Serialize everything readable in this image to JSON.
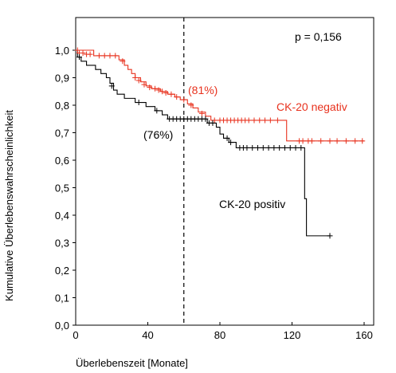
{
  "chart_data": {
    "type": "line",
    "title": "",
    "xlabel": "Überlebenszeit [Monate]",
    "ylabel": "Kumulative Überlebenswahrscheinlichkeit",
    "xlim": [
      0,
      160
    ],
    "ylim": [
      0,
      1.08
    ],
    "x_ticks": [
      {
        "v": 0,
        "t": "0"
      },
      {
        "v": 40,
        "t": "40"
      },
      {
        "v": 80,
        "t": "80"
      },
      {
        "v": 120,
        "t": "120"
      },
      {
        "v": 160,
        "t": "160"
      }
    ],
    "y_ticks": [
      {
        "v": 0.0,
        "t": "0,0"
      },
      {
        "v": 0.1,
        "t": "0,1"
      },
      {
        "v": 0.2,
        "t": "0,2"
      },
      {
        "v": 0.3,
        "t": "0,3"
      },
      {
        "v": 0.4,
        "t": "0,4"
      },
      {
        "v": 0.5,
        "t": "0,5"
      },
      {
        "v": 0.6,
        "t": "0,6"
      },
      {
        "v": 0.7,
        "t": "0,7"
      },
      {
        "v": 0.8,
        "t": "0,8"
      },
      {
        "v": 0.9,
        "t": "0,9"
      },
      {
        "v": 1.0,
        "t": "1,0"
      }
    ],
    "p_value_text": "p = 0,156",
    "reference_line": {
      "x": 60,
      "style": "dashed",
      "color": "#000000"
    },
    "series": [
      {
        "name": "CK-20 negativ",
        "color": "#e8321e",
        "annotation": "(81%)",
        "steps": [
          [
            0,
            1.0
          ],
          [
            10,
            0.98
          ],
          [
            24,
            0.965
          ],
          [
            27,
            0.945
          ],
          [
            29,
            0.93
          ],
          [
            31,
            0.915
          ],
          [
            33,
            0.9
          ],
          [
            36,
            0.885
          ],
          [
            39,
            0.87
          ],
          [
            42,
            0.86
          ],
          [
            47,
            0.85
          ],
          [
            51,
            0.84
          ],
          [
            55,
            0.83
          ],
          [
            58,
            0.82
          ],
          [
            62,
            0.805
          ],
          [
            65,
            0.79
          ],
          [
            68,
            0.775
          ],
          [
            72,
            0.76
          ],
          [
            75,
            0.745
          ],
          [
            117,
            0.67
          ],
          [
            160,
            0.67
          ]
        ],
        "censored": [
          [
            1,
            1.0
          ],
          [
            2,
            0.99
          ],
          [
            4,
            0.99
          ],
          [
            6,
            0.985
          ],
          [
            8,
            0.985
          ],
          [
            13,
            0.98
          ],
          [
            16,
            0.98
          ],
          [
            19,
            0.98
          ],
          [
            22,
            0.98
          ],
          [
            26,
            0.96
          ],
          [
            33,
            0.9
          ],
          [
            35,
            0.89
          ],
          [
            38,
            0.875
          ],
          [
            41,
            0.865
          ],
          [
            44,
            0.86
          ],
          [
            46,
            0.855
          ],
          [
            48,
            0.85
          ],
          [
            50,
            0.845
          ],
          [
            53,
            0.84
          ],
          [
            56,
            0.83
          ],
          [
            60,
            0.82
          ],
          [
            64,
            0.8
          ],
          [
            70,
            0.77
          ],
          [
            77,
            0.745
          ],
          [
            80,
            0.745
          ],
          [
            82,
            0.745
          ],
          [
            84,
            0.745
          ],
          [
            86,
            0.745
          ],
          [
            88,
            0.745
          ],
          [
            90,
            0.745
          ],
          [
            92,
            0.745
          ],
          [
            94,
            0.745
          ],
          [
            96,
            0.745
          ],
          [
            99,
            0.745
          ],
          [
            102,
            0.745
          ],
          [
            105,
            0.745
          ],
          [
            108,
            0.745
          ],
          [
            112,
            0.745
          ],
          [
            124,
            0.67
          ],
          [
            126,
            0.67
          ],
          [
            129,
            0.67
          ],
          [
            131,
            0.67
          ],
          [
            136,
            0.67
          ],
          [
            141,
            0.67
          ],
          [
            145,
            0.67
          ],
          [
            150,
            0.67
          ],
          [
            155,
            0.67
          ],
          [
            159,
            0.67
          ]
        ]
      },
      {
        "name": "CK-20 positiv",
        "color": "#000000",
        "annotation": "(76%)",
        "steps": [
          [
            0,
            1.0
          ],
          [
            1,
            0.975
          ],
          [
            3,
            0.96
          ],
          [
            6,
            0.945
          ],
          [
            11,
            0.93
          ],
          [
            14,
            0.915
          ],
          [
            17,
            0.9
          ],
          [
            19,
            0.88
          ],
          [
            21,
            0.855
          ],
          [
            23,
            0.84
          ],
          [
            27,
            0.825
          ],
          [
            33,
            0.81
          ],
          [
            39,
            0.795
          ],
          [
            44,
            0.78
          ],
          [
            48,
            0.765
          ],
          [
            51,
            0.75
          ],
          [
            73,
            0.735
          ],
          [
            78,
            0.72
          ],
          [
            80,
            0.695
          ],
          [
            82,
            0.68
          ],
          [
            85,
            0.665
          ],
          [
            89,
            0.645
          ],
          [
            127,
            0.46
          ],
          [
            128,
            0.325
          ],
          [
            141,
            0.325
          ]
        ],
        "censored": [
          [
            2,
            0.975
          ],
          [
            20,
            0.87
          ],
          [
            35,
            0.81
          ],
          [
            45,
            0.78
          ],
          [
            52,
            0.75
          ],
          [
            54,
            0.75
          ],
          [
            56,
            0.75
          ],
          [
            58,
            0.75
          ],
          [
            60,
            0.75
          ],
          [
            62,
            0.75
          ],
          [
            64,
            0.75
          ],
          [
            66,
            0.75
          ],
          [
            68,
            0.75
          ],
          [
            70,
            0.75
          ],
          [
            72,
            0.75
          ],
          [
            74,
            0.735
          ],
          [
            76,
            0.735
          ],
          [
            84,
            0.68
          ],
          [
            86,
            0.665
          ],
          [
            91,
            0.645
          ],
          [
            93,
            0.645
          ],
          [
            95,
            0.645
          ],
          [
            98,
            0.645
          ],
          [
            101,
            0.645
          ],
          [
            104,
            0.645
          ],
          [
            107,
            0.645
          ],
          [
            110,
            0.645
          ],
          [
            113,
            0.645
          ],
          [
            116,
            0.645
          ],
          [
            119,
            0.645
          ],
          [
            122,
            0.645
          ],
          [
            125,
            0.645
          ],
          [
            141,
            0.325
          ]
        ]
      }
    ]
  }
}
